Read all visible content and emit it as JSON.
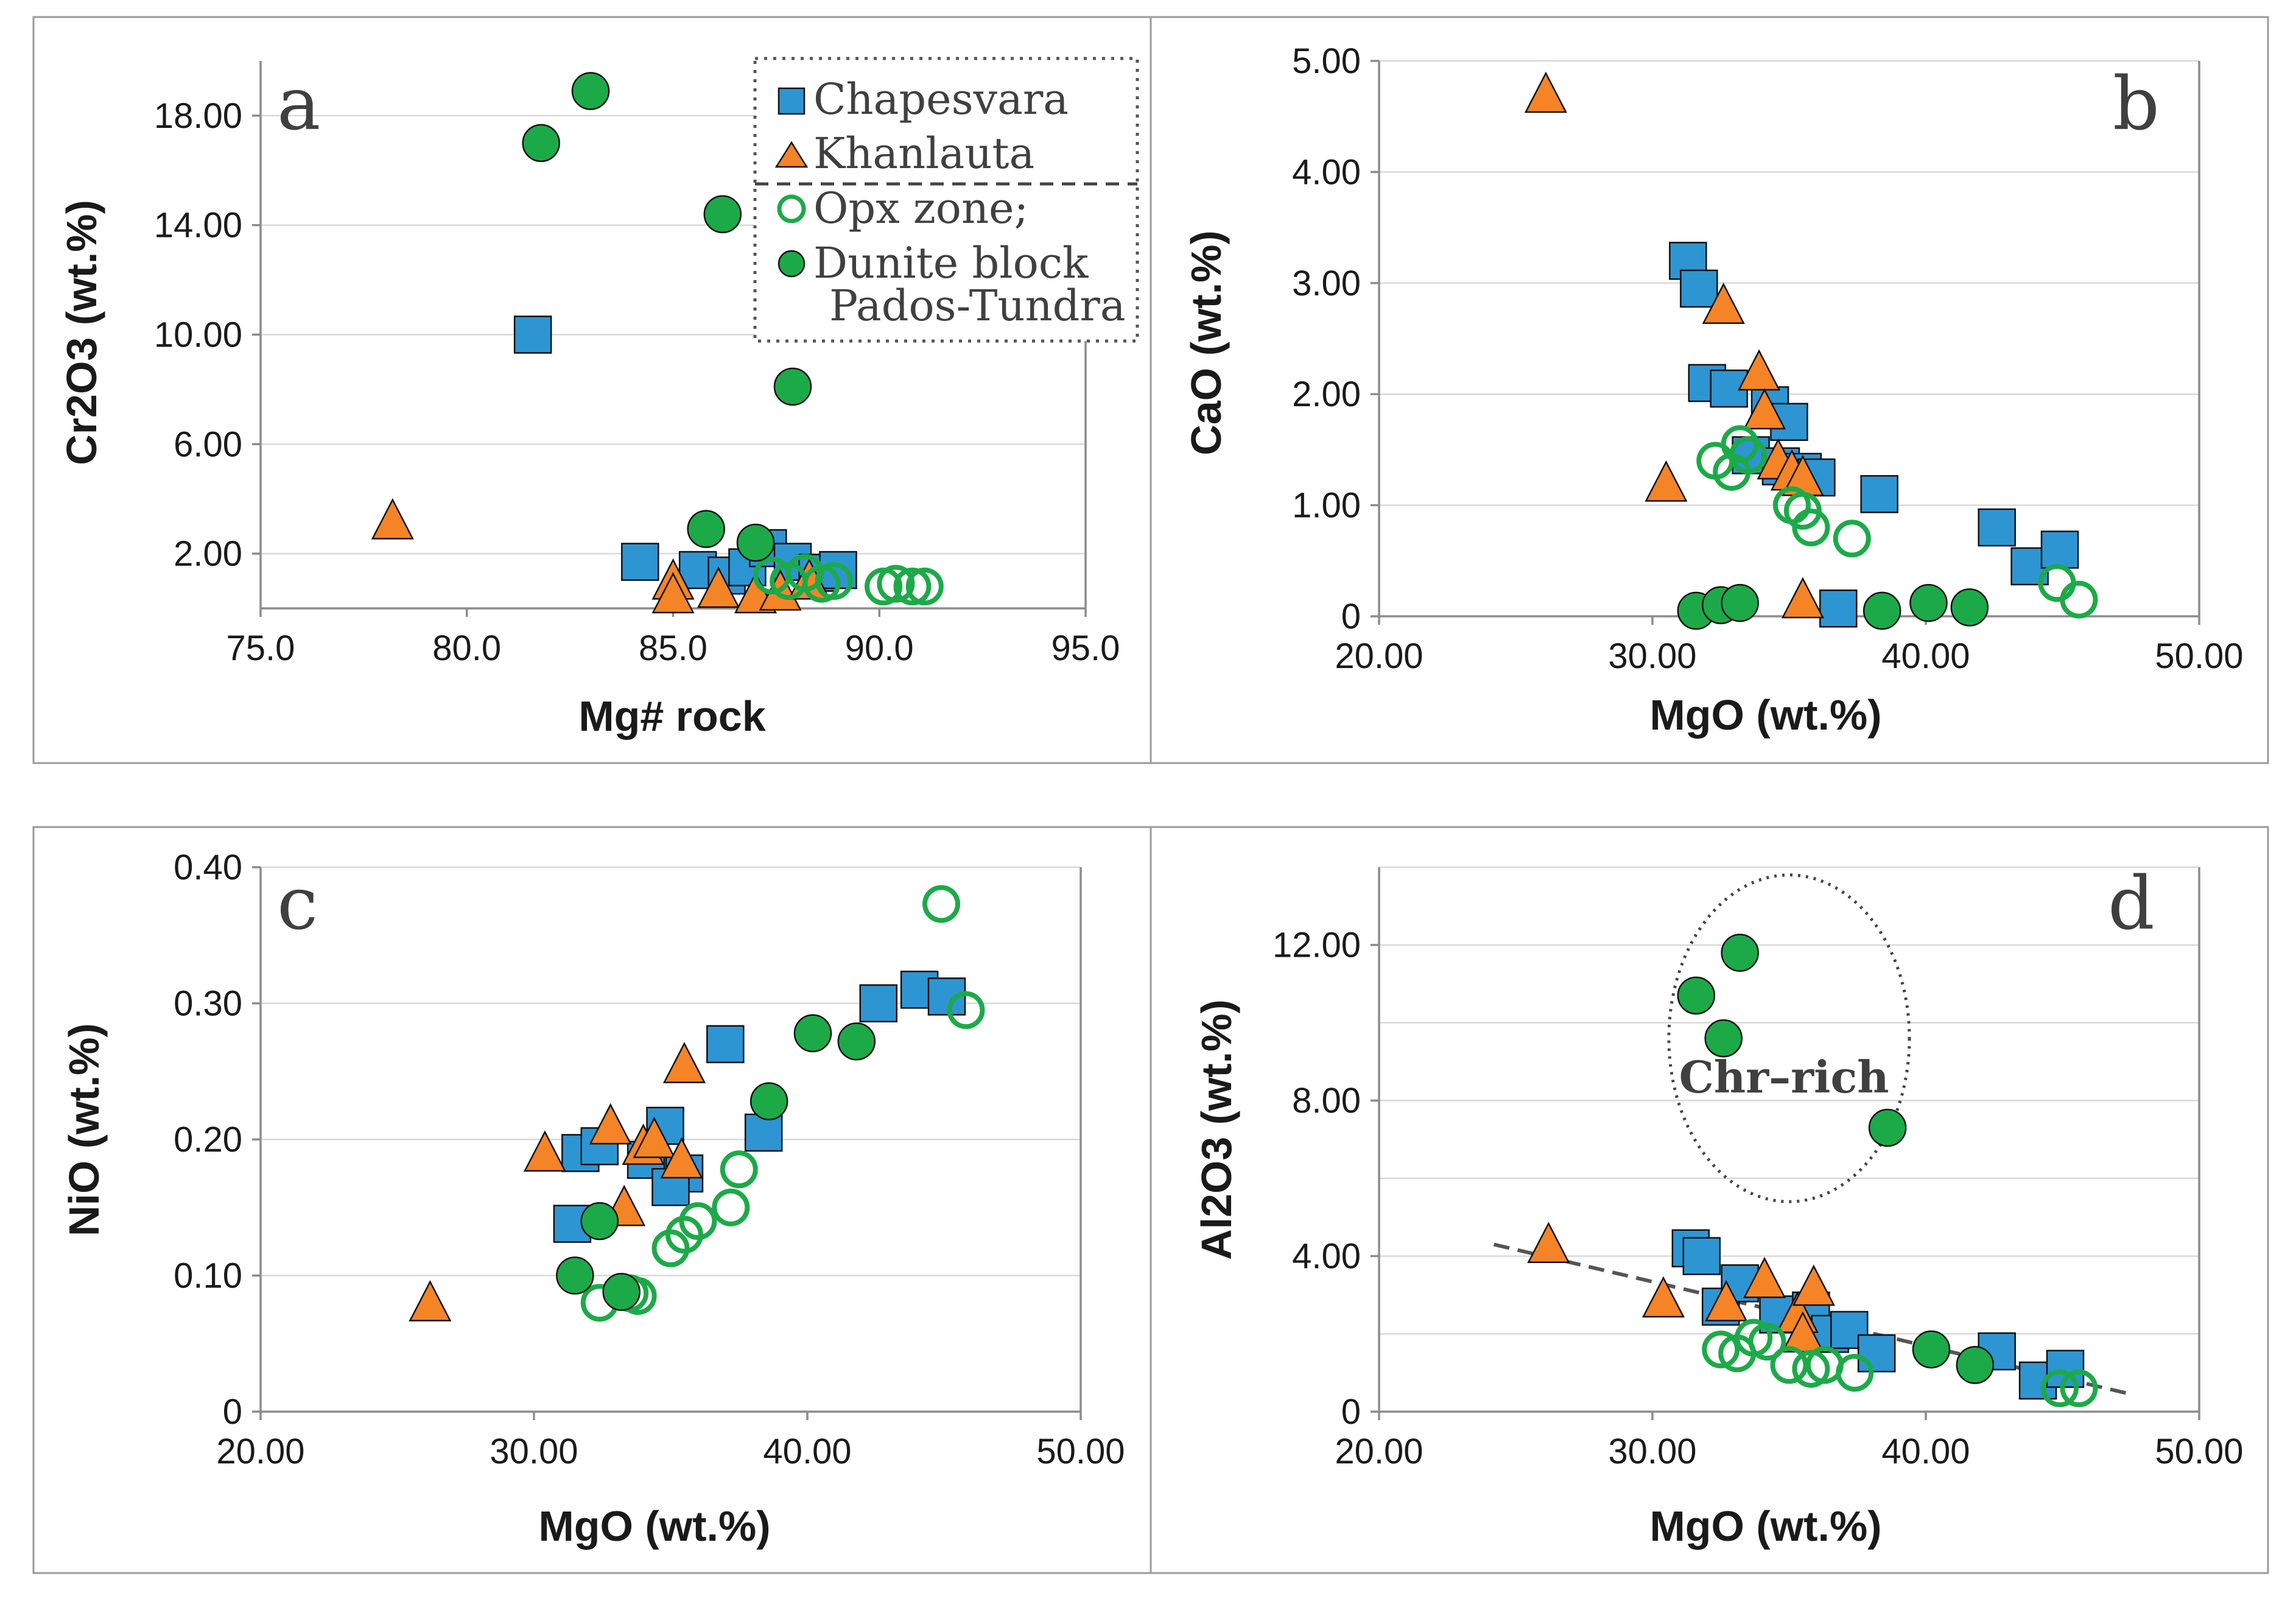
{
  "colors": {
    "chapesvara": "#2e95d3",
    "khanlauta": "#f58426",
    "green": "#1caa48",
    "outline": "#111111"
  },
  "legend": {
    "entries": [
      {
        "label": "Chapesvara",
        "marker": "square",
        "color": "#2e95d3"
      },
      {
        "label": "Khanlauta",
        "marker": "triangle",
        "color": "#f58426"
      },
      {
        "label": "Opx zone;",
        "marker": "open-circle",
        "color": "#1caa48"
      },
      {
        "label": "Dunite block",
        "marker": "filled-circle",
        "color": "#1caa48"
      },
      {
        "label": "Pados-Tundra",
        "marker": "none",
        "color": ""
      }
    ]
  },
  "chart_data": [
    {
      "id": "a",
      "type": "scatter",
      "panel_label": "a",
      "xlabel": "Mg# rock",
      "ylabel": "Cr2O3 (wt.%)",
      "xlim": [
        75,
        95
      ],
      "ylim": [
        0,
        20
      ],
      "xticks": [
        75,
        80,
        85,
        90,
        95
      ],
      "xtick_labels": [
        "75.0",
        "80.0",
        "85.0",
        "90.0",
        "95.0"
      ],
      "yticks": [
        2,
        6,
        10,
        14,
        18
      ],
      "ytick_labels": [
        "2.00",
        "6.00",
        "10.00",
        "14.00",
        "18.00"
      ],
      "gridlines": [
        2,
        6,
        10,
        14,
        18
      ],
      "series": [
        {
          "name": "Chapesvara",
          "marker": "square",
          "points": [
            [
              81.6,
              10.0
            ],
            [
              84.2,
              1.7
            ],
            [
              85.6,
              1.4
            ],
            [
              86.3,
              1.2
            ],
            [
              86.8,
              1.5
            ],
            [
              87.3,
              2.2
            ],
            [
              87.9,
              1.7
            ],
            [
              88.5,
              1.3
            ],
            [
              89.0,
              1.4
            ]
          ]
        },
        {
          "name": "Khanlauta",
          "marker": "triangle",
          "points": [
            [
              78.2,
              3.2
            ],
            [
              85.0,
              1.0
            ],
            [
              85.0,
              0.5
            ],
            [
              86.1,
              0.7
            ],
            [
              87.0,
              0.5
            ],
            [
              87.6,
              0.6
            ],
            [
              88.3,
              1.0
            ]
          ]
        },
        {
          "name": "Opx zone",
          "marker": "open-circle",
          "points": [
            [
              87.4,
              1.2
            ],
            [
              87.8,
              1.0
            ],
            [
              88.2,
              1.3
            ],
            [
              88.6,
              0.9
            ],
            [
              88.9,
              1.0
            ],
            [
              90.1,
              0.8
            ],
            [
              90.4,
              0.9
            ],
            [
              90.8,
              0.8
            ],
            [
              91.1,
              0.8
            ]
          ]
        },
        {
          "name": "Dunite block Pados-Tundra",
          "marker": "filled-circle",
          "points": [
            [
              81.8,
              17.0
            ],
            [
              83.0,
              18.9
            ],
            [
              86.2,
              14.4
            ],
            [
              87.9,
              8.1
            ],
            [
              85.8,
              2.9
            ],
            [
              87.0,
              2.4
            ]
          ]
        }
      ]
    },
    {
      "id": "b",
      "type": "scatter",
      "panel_label": "b",
      "xlabel": "MgO (wt.%)",
      "ylabel": "CaO (wt.%)",
      "xlim": [
        20,
        50
      ],
      "ylim": [
        0,
        5
      ],
      "xticks": [
        20,
        30,
        40,
        50
      ],
      "xtick_labels": [
        "20.00",
        "30.00",
        "40.00",
        "50.00"
      ],
      "yticks": [
        0,
        1,
        2,
        3,
        4,
        5
      ],
      "ytick_labels": [
        "0",
        "1.00",
        "2.00",
        "3.00",
        "4.00",
        "5.00"
      ],
      "gridlines": [
        1,
        2,
        3,
        4,
        5
      ],
      "series": [
        {
          "name": "Chapesvara",
          "marker": "square",
          "points": [
            [
              31.3,
              3.2
            ],
            [
              31.7,
              2.95
            ],
            [
              32.0,
              2.1
            ],
            [
              32.8,
              2.05
            ],
            [
              34.3,
              1.9
            ],
            [
              35.0,
              1.75
            ],
            [
              33.6,
              1.45
            ],
            [
              34.7,
              1.35
            ],
            [
              35.5,
              1.3
            ],
            [
              36.0,
              1.25
            ],
            [
              38.3,
              1.1
            ],
            [
              42.6,
              0.8
            ],
            [
              43.8,
              0.45
            ],
            [
              44.9,
              0.6
            ],
            [
              36.8,
              0.07
            ]
          ]
        },
        {
          "name": "Khanlauta",
          "marker": "triangle",
          "points": [
            [
              26.1,
              4.7
            ],
            [
              32.6,
              2.8
            ],
            [
              33.9,
              2.2
            ],
            [
              34.1,
              1.85
            ],
            [
              34.6,
              1.4
            ],
            [
              35.1,
              1.3
            ],
            [
              35.5,
              1.25
            ],
            [
              30.5,
              1.2
            ],
            [
              35.5,
              0.15
            ]
          ]
        },
        {
          "name": "Opx zone",
          "marker": "open-circle",
          "points": [
            [
              32.3,
              1.4
            ],
            [
              32.9,
              1.3
            ],
            [
              33.2,
              1.55
            ],
            [
              33.5,
              1.45
            ],
            [
              35.1,
              1.0
            ],
            [
              35.5,
              0.95
            ],
            [
              35.8,
              0.8
            ],
            [
              37.3,
              0.7
            ],
            [
              44.8,
              0.3
            ],
            [
              45.6,
              0.15
            ]
          ]
        },
        {
          "name": "Dunite block Pados-Tundra",
          "marker": "filled-circle",
          "points": [
            [
              31.6,
              0.05
            ],
            [
              32.5,
              0.1
            ],
            [
              33.2,
              0.12
            ],
            [
              38.4,
              0.05
            ],
            [
              40.1,
              0.12
            ],
            [
              41.6,
              0.08
            ]
          ]
        }
      ]
    },
    {
      "id": "c",
      "type": "scatter",
      "panel_label": "c",
      "xlabel": "MgO (wt.%)",
      "ylabel": "NiO (wt.%)",
      "xlim": [
        20,
        50
      ],
      "ylim": [
        0,
        0.4
      ],
      "xticks": [
        20,
        30,
        40,
        50
      ],
      "xtick_labels": [
        "20.00",
        "30.00",
        "40.00",
        "50.00"
      ],
      "yticks": [
        0,
        0.1,
        0.2,
        0.3,
        0.4
      ],
      "ytick_labels": [
        "0",
        "0.10",
        "0.20",
        "0.30",
        "0.40"
      ],
      "gridlines": [
        0.1,
        0.2,
        0.3,
        0.4
      ],
      "series": [
        {
          "name": "Chapesvara",
          "marker": "square",
          "points": [
            [
              31.4,
              0.138
            ],
            [
              31.7,
              0.19
            ],
            [
              32.4,
              0.195
            ],
            [
              34.1,
              0.185
            ],
            [
              34.8,
              0.21
            ],
            [
              35.5,
              0.175
            ],
            [
              35.0,
              0.165
            ],
            [
              37.0,
              0.27
            ],
            [
              38.4,
              0.205
            ],
            [
              42.6,
              0.3
            ],
            [
              44.1,
              0.31
            ],
            [
              45.1,
              0.305
            ]
          ]
        },
        {
          "name": "Khanlauta",
          "marker": "triangle",
          "points": [
            [
              26.2,
              0.08
            ],
            [
              30.4,
              0.19
            ],
            [
              32.8,
              0.21
            ],
            [
              33.3,
              0.15
            ],
            [
              34.0,
              0.195
            ],
            [
              34.4,
              0.2
            ],
            [
              35.5,
              0.255
            ],
            [
              35.4,
              0.185
            ]
          ]
        },
        {
          "name": "Opx zone",
          "marker": "open-circle",
          "points": [
            [
              32.4,
              0.08
            ],
            [
              33.5,
              0.087
            ],
            [
              33.8,
              0.085
            ],
            [
              35.0,
              0.12
            ],
            [
              35.5,
              0.13
            ],
            [
              36.0,
              0.14
            ],
            [
              37.2,
              0.15
            ],
            [
              37.5,
              0.178
            ],
            [
              44.9,
              0.373
            ],
            [
              45.8,
              0.295
            ]
          ]
        },
        {
          "name": "Dunite block Pados-Tundra",
          "marker": "filled-circle",
          "points": [
            [
              31.5,
              0.1
            ],
            [
              32.4,
              0.14
            ],
            [
              33.2,
              0.088
            ],
            [
              38.6,
              0.228
            ],
            [
              40.2,
              0.278
            ],
            [
              41.8,
              0.272
            ]
          ]
        }
      ]
    },
    {
      "id": "d",
      "type": "scatter",
      "panel_label": "d",
      "xlabel": "MgO (wt.%)",
      "ylabel": "Al2O3 (wt.%)",
      "xlim": [
        20,
        50
      ],
      "ylim": [
        0,
        14
      ],
      "xticks": [
        20,
        30,
        40,
        50
      ],
      "xtick_labels": [
        "20.00",
        "30.00",
        "40.00",
        "50.00"
      ],
      "yticks": [
        0,
        4,
        8,
        12
      ],
      "ytick_labels": [
        "0",
        "4.00",
        "8.00",
        "12.00"
      ],
      "gridlines": [
        2,
        4,
        6,
        8,
        10,
        12,
        14
      ],
      "annotation": {
        "text": "Chr–rich",
        "at": [
          38.6,
          8.6
        ],
        "ellipse": {
          "cx": 35.0,
          "cy": 9.6,
          "rx": 4.4,
          "ry": 4.2
        }
      },
      "trendline": {
        "style": "dashed",
        "from": [
          24.2,
          4.3
        ],
        "to": [
          47.5,
          0.45
        ]
      },
      "series": [
        {
          "name": "Chapesvara",
          "marker": "square",
          "points": [
            [
              31.4,
              4.2
            ],
            [
              31.8,
              4.0
            ],
            [
              32.5,
              2.7
            ],
            [
              33.2,
              3.3
            ],
            [
              34.6,
              2.5
            ],
            [
              35.8,
              2.6
            ],
            [
              36.5,
              2.0
            ],
            [
              37.2,
              2.1
            ],
            [
              38.2,
              1.5
            ],
            [
              42.6,
              1.55
            ],
            [
              44.1,
              0.8
            ],
            [
              45.1,
              1.1
            ]
          ]
        },
        {
          "name": "Khanlauta",
          "marker": "triangle",
          "points": [
            [
              26.2,
              4.3
            ],
            [
              30.4,
              2.9
            ],
            [
              32.7,
              2.8
            ],
            [
              34.1,
              3.4
            ],
            [
              35.3,
              2.5
            ],
            [
              35.9,
              3.2
            ],
            [
              35.5,
              2.0
            ]
          ]
        },
        {
          "name": "Opx zone",
          "marker": "open-circle",
          "points": [
            [
              32.5,
              1.6
            ],
            [
              33.1,
              1.5
            ],
            [
              33.7,
              1.9
            ],
            [
              34.2,
              1.8
            ],
            [
              35.0,
              1.2
            ],
            [
              35.8,
              1.1
            ],
            [
              36.3,
              1.2
            ],
            [
              37.4,
              1.0
            ],
            [
              44.9,
              0.6
            ],
            [
              45.6,
              0.6
            ]
          ]
        },
        {
          "name": "Dunite block Pados-Tundra",
          "marker": "filled-circle",
          "points": [
            [
              31.6,
              10.7
            ],
            [
              32.6,
              9.6
            ],
            [
              33.2,
              11.8
            ],
            [
              38.6,
              7.3
            ],
            [
              40.2,
              1.6
            ],
            [
              41.8,
              1.2
            ]
          ]
        }
      ]
    }
  ]
}
